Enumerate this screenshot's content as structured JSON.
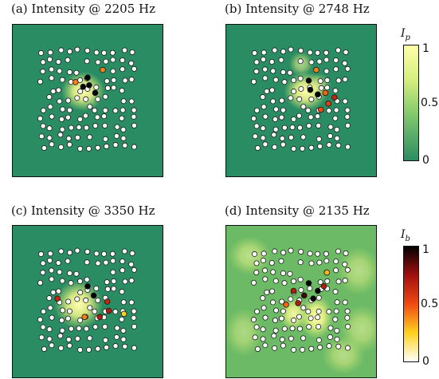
{
  "chart_data": [
    {
      "type": "heatmap",
      "title": "(a) Intensity @ 2205 Hz",
      "background": "#2a8c63",
      "hotspots": [
        {
          "x": 0.47,
          "y": 0.44,
          "w": 0.09,
          "h": 0.08,
          "intensity": 1.0
        }
      ],
      "highlights": [
        {
          "x": 0.5,
          "y": 0.35,
          "level": 0.0
        },
        {
          "x": 0.51,
          "y": 0.4,
          "level": 0.0
        },
        {
          "x": 0.47,
          "y": 0.41,
          "level": 0.0
        },
        {
          "x": 0.55,
          "y": 0.45,
          "level": 0.0
        },
        {
          "x": 0.6,
          "y": 0.3,
          "level": 0.6
        },
        {
          "x": 0.42,
          "y": 0.38,
          "level": 0.6
        }
      ]
    },
    {
      "type": "heatmap",
      "title": "(b) Intensity @ 2748 Hz",
      "background": "#2a8c63",
      "hotspots": [
        {
          "x": 0.53,
          "y": 0.44,
          "w": 0.09,
          "h": 0.08,
          "intensity": 1.0
        },
        {
          "x": 0.5,
          "y": 0.26,
          "w": 0.05,
          "h": 0.05,
          "intensity": 0.6
        },
        {
          "x": 0.62,
          "y": 0.4,
          "w": 0.05,
          "h": 0.05,
          "intensity": 0.5
        }
      ],
      "highlights": [
        {
          "x": 0.55,
          "y": 0.37,
          "level": 0.0
        },
        {
          "x": 0.56,
          "y": 0.43,
          "level": 0.0
        },
        {
          "x": 0.61,
          "y": 0.46,
          "level": 0.0
        },
        {
          "x": 0.66,
          "y": 0.45,
          "level": 0.55
        },
        {
          "x": 0.68,
          "y": 0.52,
          "level": 0.45
        },
        {
          "x": 0.72,
          "y": 0.48,
          "level": 0.35
        },
        {
          "x": 0.63,
          "y": 0.56,
          "level": 0.5
        },
        {
          "x": 0.6,
          "y": 0.3,
          "level": 0.6
        }
      ]
    },
    {
      "type": "heatmap",
      "title": "(c) Intensity @ 3350 Hz",
      "background": "#2a8c63",
      "hotspots": [
        {
          "x": 0.44,
          "y": 0.52,
          "w": 0.1,
          "h": 0.1,
          "intensity": 1.0
        }
      ],
      "highlights": [
        {
          "x": 0.5,
          "y": 0.4,
          "level": 0.0
        },
        {
          "x": 0.54,
          "y": 0.46,
          "level": 0.0
        },
        {
          "x": 0.63,
          "y": 0.5,
          "level": 0.35
        },
        {
          "x": 0.64,
          "y": 0.56,
          "level": 0.3
        },
        {
          "x": 0.58,
          "y": 0.6,
          "level": 0.3
        },
        {
          "x": 0.3,
          "y": 0.48,
          "level": 0.35
        },
        {
          "x": 0.48,
          "y": 0.6,
          "level": 0.6
        },
        {
          "x": 0.74,
          "y": 0.58,
          "level": 0.75
        }
      ]
    },
    {
      "type": "heatmap",
      "title": "(d) Intensity @ 2135 Hz",
      "background": "#6cba66",
      "hotspots": [
        {
          "x": 0.6,
          "y": 0.6,
          "w": 0.07,
          "h": 0.09,
          "intensity": 1.0
        },
        {
          "x": 0.45,
          "y": 0.58,
          "w": 0.06,
          "h": 0.07,
          "intensity": 0.9
        },
        {
          "x": 0.16,
          "y": 0.2,
          "w": 0.09,
          "h": 0.08,
          "intensity": 0.55
        },
        {
          "x": 0.88,
          "y": 0.3,
          "w": 0.09,
          "h": 0.1,
          "intensity": 0.5
        },
        {
          "x": 0.9,
          "y": 0.68,
          "w": 0.09,
          "h": 0.1,
          "intensity": 0.5
        },
        {
          "x": 0.78,
          "y": 0.85,
          "w": 0.09,
          "h": 0.08,
          "intensity": 0.5
        },
        {
          "x": 0.12,
          "y": 0.7,
          "w": 0.08,
          "h": 0.1,
          "intensity": 0.45
        }
      ],
      "highlights": [
        {
          "x": 0.55,
          "y": 0.38,
          "level": 0.0
        },
        {
          "x": 0.61,
          "y": 0.43,
          "level": 0.0
        },
        {
          "x": 0.58,
          "y": 0.48,
          "level": 0.0
        },
        {
          "x": 0.52,
          "y": 0.46,
          "level": 0.1
        },
        {
          "x": 0.45,
          "y": 0.43,
          "level": 0.3
        },
        {
          "x": 0.65,
          "y": 0.4,
          "level": 0.3
        },
        {
          "x": 0.48,
          "y": 0.51,
          "level": 0.3
        },
        {
          "x": 0.4,
          "y": 0.52,
          "level": 0.55
        },
        {
          "x": 0.67,
          "y": 0.31,
          "level": 0.7
        }
      ]
    }
  ],
  "colorbar_top": {
    "label": "I",
    "subscript": "p",
    "ticks": [
      "1",
      "0.5",
      "0"
    ]
  },
  "colorbar_bottom": {
    "label": "I",
    "subscript": "b",
    "ticks": [
      "1",
      "0.5",
      "0"
    ]
  },
  "colors": {
    "dot_fill": "#ffffff",
    "dot_stroke": "#1a1a1a",
    "frame": "#111111"
  }
}
